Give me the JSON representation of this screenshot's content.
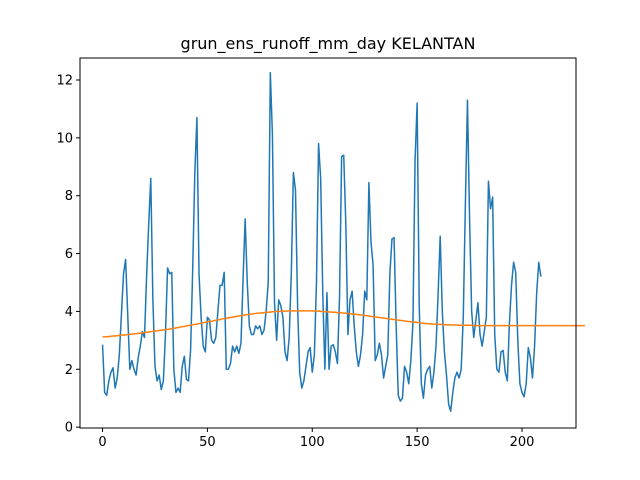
{
  "chart_data": {
    "type": "line",
    "title": "grun_ens_runoff_mm_day KELANTAN",
    "xlabel": "",
    "ylabel": "",
    "xlim": [
      -10.75,
      225.75
    ],
    "ylim": [
      -0.03,
      12.76
    ],
    "xticks": [
      0,
      50,
      100,
      150,
      200
    ],
    "yticks": [
      0,
      2,
      4,
      6,
      8,
      10,
      12
    ],
    "grid": false,
    "legend": "none",
    "colors": [
      "#1f77b4",
      "#ff7f0e"
    ],
    "series": [
      {
        "values": [
          2.85,
          1.2,
          1.1,
          1.6,
          1.9,
          2.05,
          1.35,
          1.7,
          2.5,
          3.9,
          5.3,
          5.8,
          3.9,
          2.0,
          2.3,
          2.0,
          1.8,
          2.4,
          2.8,
          3.3,
          3.1,
          5.2,
          7.0,
          8.6,
          4.4,
          2.1,
          1.6,
          1.8,
          1.3,
          1.6,
          3.2,
          5.5,
          5.3,
          5.35,
          2.0,
          1.2,
          1.35,
          1.2,
          2.1,
          2.45,
          1.65,
          1.6,
          2.7,
          5.5,
          8.8,
          10.7,
          5.3,
          3.8,
          2.8,
          2.6,
          3.8,
          3.7,
          3.0,
          2.9,
          3.1,
          4.0,
          4.9,
          4.9,
          5.35,
          2.0,
          2.0,
          2.2,
          2.8,
          2.6,
          2.8,
          2.55,
          2.9,
          5.1,
          7.2,
          5.0,
          3.5,
          3.2,
          3.2,
          3.5,
          3.4,
          3.5,
          3.2,
          3.35,
          4.0,
          5.0,
          12.25,
          10.1,
          4.3,
          3.0,
          4.4,
          4.2,
          3.8,
          2.6,
          2.3,
          3.1,
          5.3,
          8.8,
          8.2,
          4.2,
          1.9,
          1.35,
          1.6,
          2.1,
          2.6,
          2.75,
          1.9,
          2.5,
          5.0,
          9.8,
          8.6,
          4.65,
          2.0,
          4.65,
          2.0,
          2.8,
          2.85,
          2.6,
          2.2,
          4.5,
          9.35,
          9.4,
          7.0,
          3.2,
          4.4,
          4.7,
          3.5,
          2.6,
          2.1,
          2.5,
          3.2,
          4.7,
          4.4,
          8.45,
          6.4,
          5.6,
          2.3,
          2.5,
          2.9,
          2.5,
          1.7,
          2.1,
          2.5,
          5.3,
          6.5,
          6.55,
          3.5,
          1.1,
          0.9,
          1.0,
          2.1,
          1.9,
          1.5,
          2.3,
          3.6,
          9.2,
          11.2,
          4.2,
          1.5,
          1.0,
          1.8,
          2.0,
          2.1,
          1.35,
          1.9,
          2.8,
          4.6,
          6.6,
          4.0,
          2.6,
          1.8,
          0.8,
          0.55,
          1.2,
          1.7,
          1.9,
          1.7,
          2.0,
          3.8,
          7.7,
          11.3,
          7.2,
          4.0,
          3.1,
          3.7,
          4.3,
          3.2,
          2.8,
          3.3,
          3.8,
          8.5,
          7.55,
          7.95,
          3.2,
          2.0,
          1.9,
          2.6,
          2.65,
          1.9,
          1.6,
          3.6,
          4.9,
          5.7,
          5.35,
          3.0,
          1.5,
          1.2,
          1.05,
          1.5,
          2.75,
          2.4,
          1.7,
          2.8,
          4.65,
          5.7,
          5.2
        ]
      },
      {
        "values": [
          3.12,
          3.12,
          3.13,
          3.13,
          3.14,
          3.15,
          3.15,
          3.16,
          3.17,
          3.18,
          3.18,
          3.19,
          3.2,
          3.21,
          3.22,
          3.22,
          3.23,
          3.24,
          3.25,
          3.26,
          3.27,
          3.28,
          3.29,
          3.3,
          3.31,
          3.32,
          3.33,
          3.34,
          3.35,
          3.36,
          3.37,
          3.38,
          3.39,
          3.41,
          3.42,
          3.43,
          3.44,
          3.46,
          3.47,
          3.48,
          3.5,
          3.51,
          3.52,
          3.54,
          3.55,
          3.56,
          3.58,
          3.59,
          3.61,
          3.62,
          3.64,
          3.65,
          3.66,
          3.68,
          3.69,
          3.71,
          3.72,
          3.74,
          3.75,
          3.76,
          3.78,
          3.79,
          3.8,
          3.82,
          3.83,
          3.84,
          3.85,
          3.86,
          3.88,
          3.89,
          3.9,
          3.91,
          3.92,
          3.93,
          3.94,
          3.94,
          3.95,
          3.96,
          3.97,
          3.97,
          3.98,
          3.99,
          3.99,
          4.0,
          4.0,
          4.0,
          4.01,
          4.01,
          4.01,
          4.02,
          4.02,
          4.02,
          4.02,
          4.02,
          4.02,
          4.02,
          4.02,
          4.02,
          4.02,
          4.02,
          4.02,
          4.01,
          4.01,
          4.01,
          4.0,
          4.0,
          3.99,
          3.99,
          3.98,
          3.98,
          3.97,
          3.97,
          3.96,
          3.96,
          3.95,
          3.94,
          3.94,
          3.93,
          3.92,
          3.91,
          3.9,
          3.9,
          3.89,
          3.88,
          3.87,
          3.86,
          3.85,
          3.84,
          3.83,
          3.82,
          3.81,
          3.8,
          3.79,
          3.78,
          3.77,
          3.76,
          3.75,
          3.74,
          3.73,
          3.72,
          3.71,
          3.7,
          3.69,
          3.68,
          3.67,
          3.66,
          3.65,
          3.64,
          3.63,
          3.63,
          3.62,
          3.61,
          3.6,
          3.59,
          3.58,
          3.58,
          3.57,
          3.57,
          3.56,
          3.56,
          3.55,
          3.55,
          3.55,
          3.54,
          3.54,
          3.54,
          3.53,
          3.53,
          3.53,
          3.53,
          3.52,
          3.52,
          3.52,
          3.52,
          3.52,
          3.52,
          3.52,
          3.51,
          3.51,
          3.51,
          3.51,
          3.51,
          3.51,
          3.51,
          3.51,
          3.51,
          3.51,
          3.51,
          3.51,
          3.51,
          3.51,
          3.51,
          3.51,
          3.51,
          3.51,
          3.51,
          3.51,
          3.51,
          3.51,
          3.51,
          3.51,
          3.51,
          3.51,
          3.51,
          3.51,
          3.51,
          3.51,
          3.51,
          3.51,
          3.51,
          3.51,
          3.51,
          3.51,
          3.51,
          3.51,
          3.51,
          3.51,
          3.51,
          3.51,
          3.51,
          3.51,
          3.51,
          3.51,
          3.51,
          3.51,
          3.51,
          3.51,
          3.51,
          3.51,
          3.51,
          3.51
        ]
      }
    ]
  }
}
